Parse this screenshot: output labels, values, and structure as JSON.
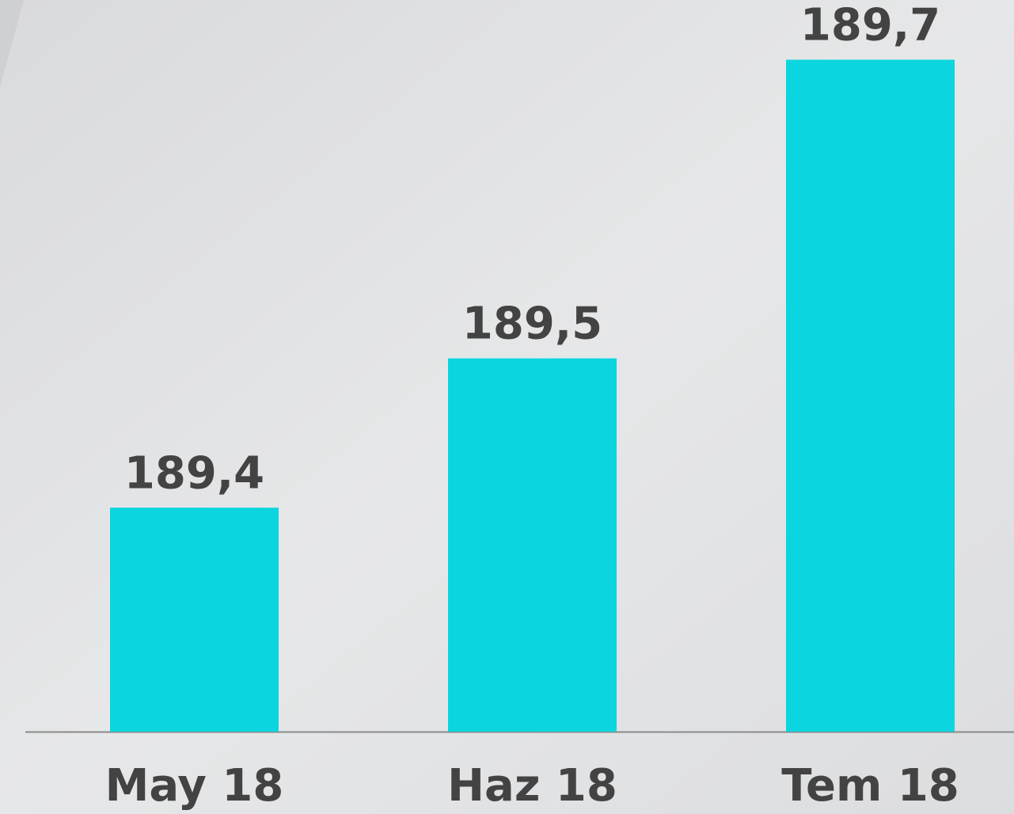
{
  "chart_data": {
    "type": "bar",
    "categories": [
      "May 18",
      "Haz 18",
      "Tem 18"
    ],
    "values": [
      189.4,
      189.5,
      189.7
    ],
    "value_labels": [
      "189,4",
      "189,5",
      "189,7"
    ],
    "color": "#0bd5de",
    "ylim": [
      189.25,
      189.74
    ]
  }
}
